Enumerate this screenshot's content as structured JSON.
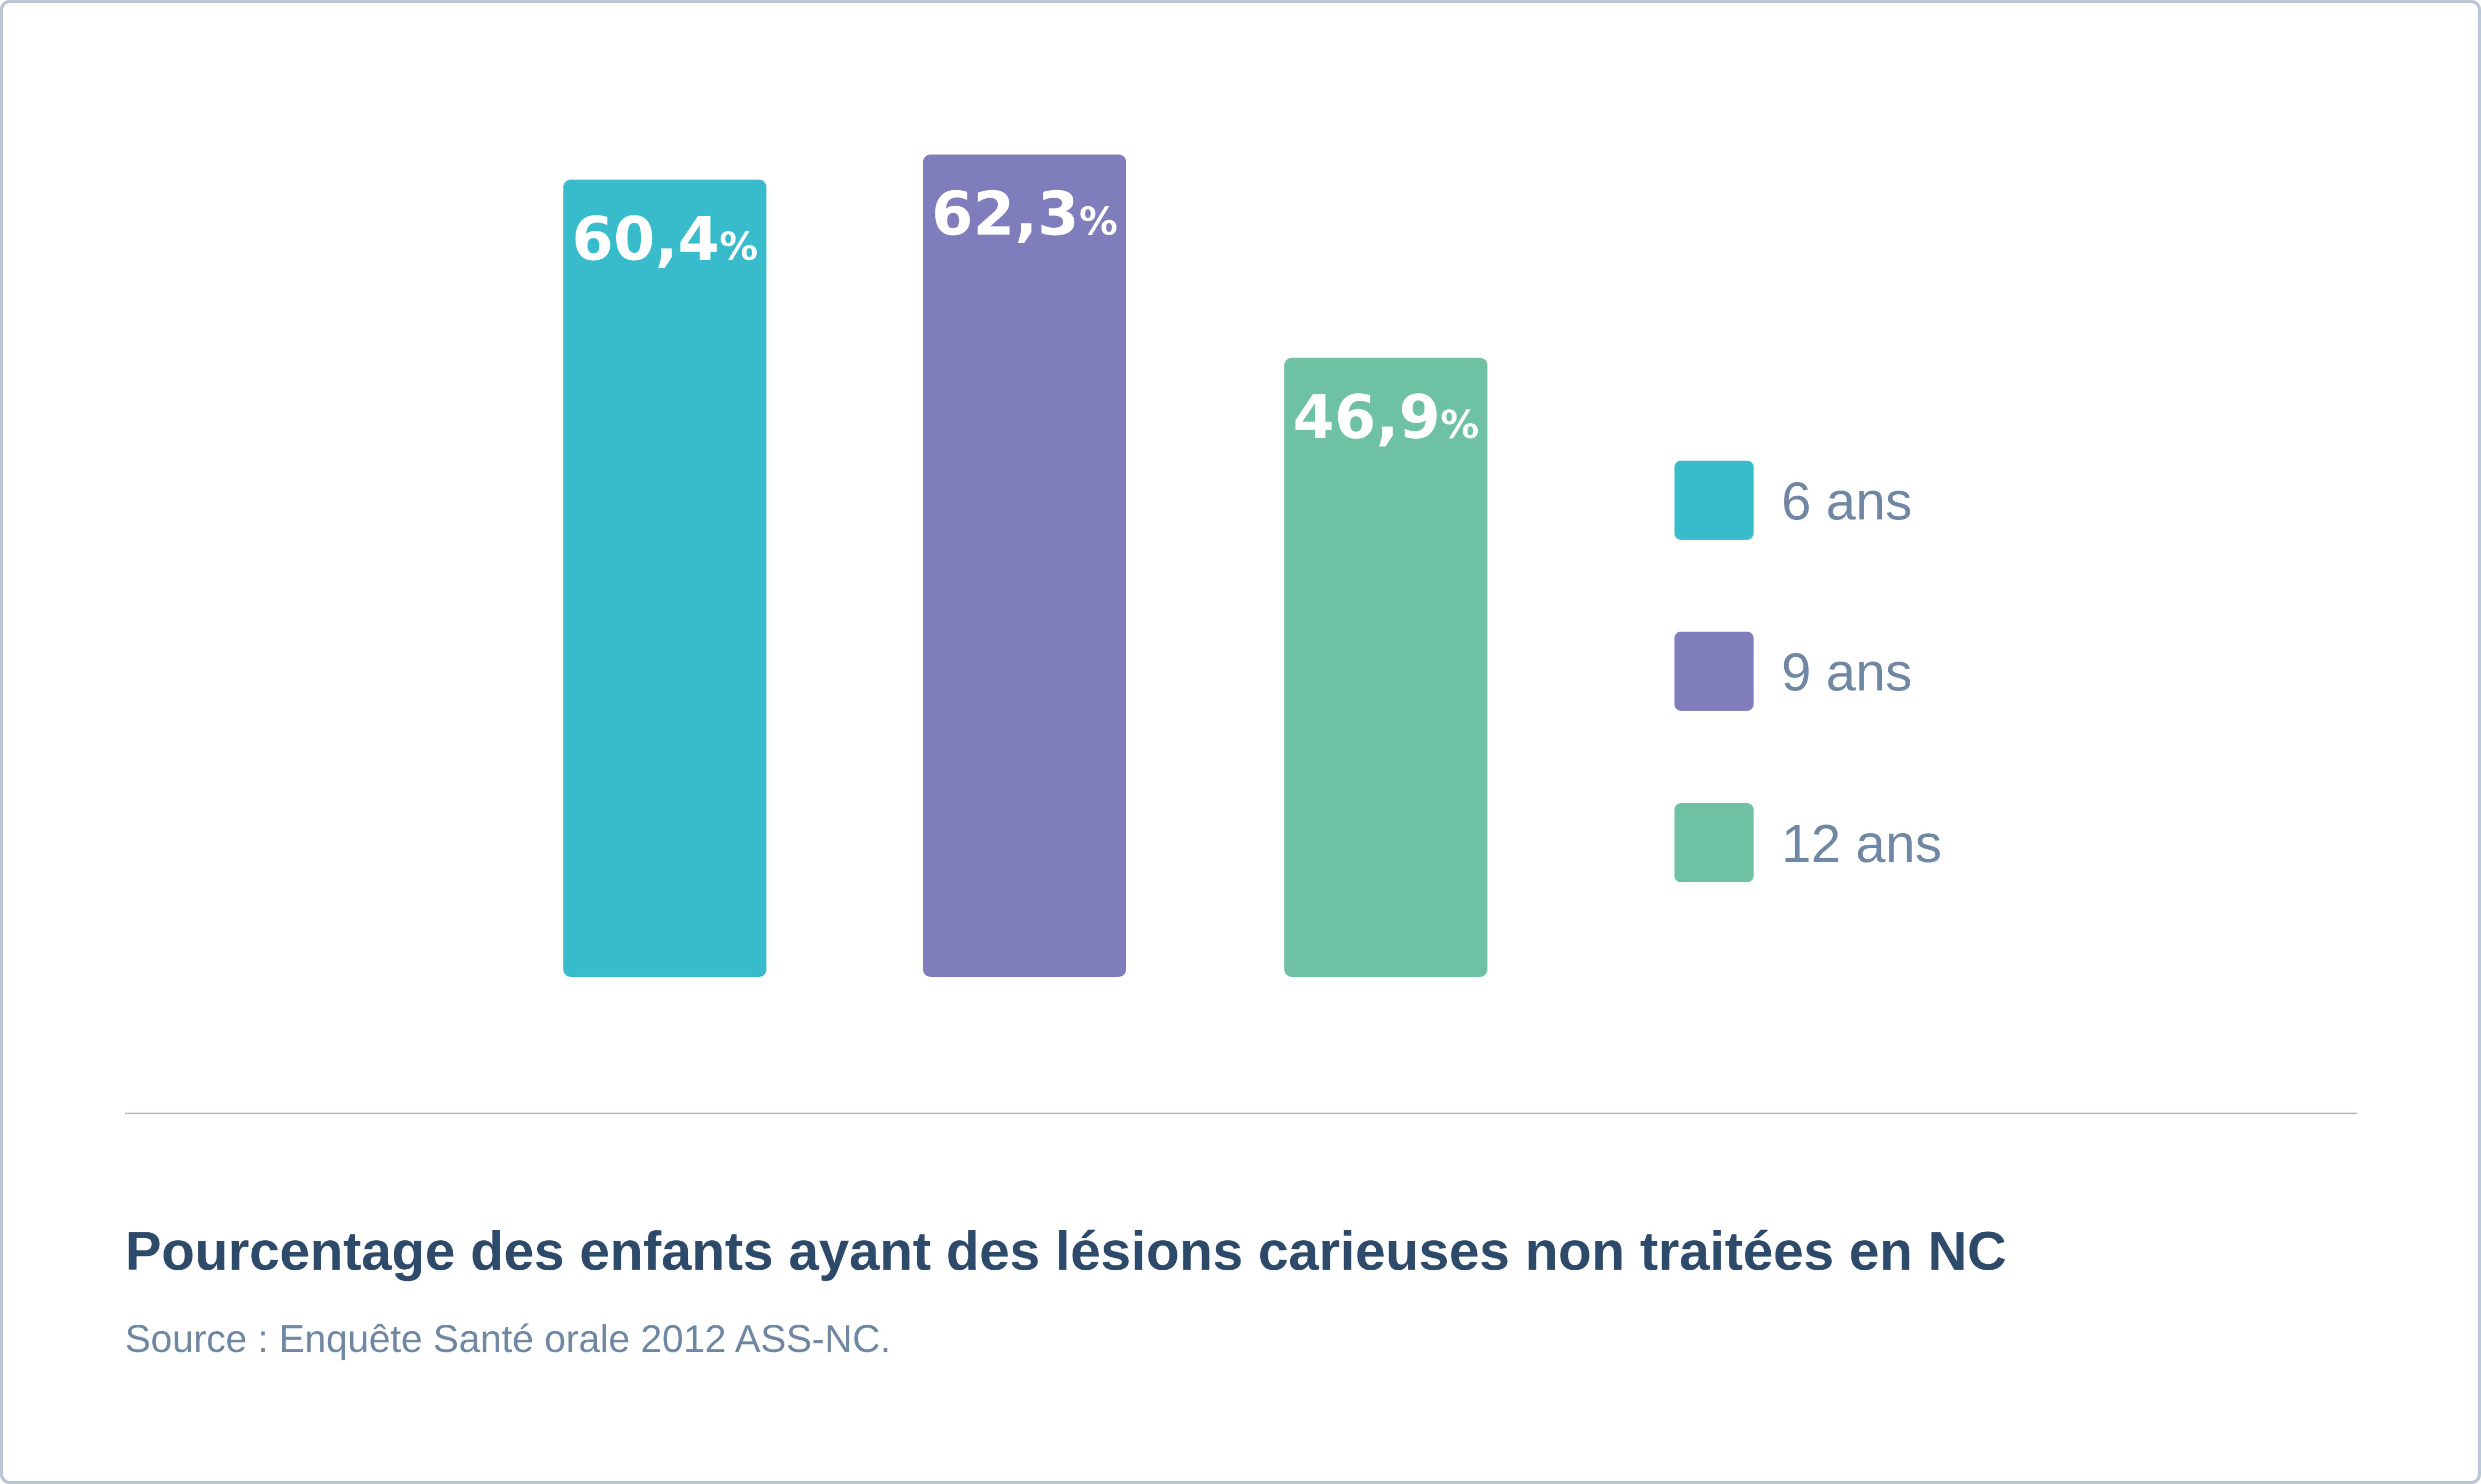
{
  "chart_data": {
    "type": "bar",
    "categories": [
      "6 ans",
      "9 ans",
      "12 ans"
    ],
    "values": [
      60.4,
      62.3,
      46.9
    ],
    "value_labels": [
      "60,4",
      "62,3",
      "46,9"
    ],
    "value_unit": "%",
    "colors": [
      "#38bbca",
      "#7f7dbb",
      "#6ec1a3"
    ],
    "title": "Pourcentage des enfants ayant des lésions carieuses non traitées en NC",
    "source": "Source : Enquête Santé orale 2012 ASS-NC.",
    "xlabel": "",
    "ylabel": "",
    "ylim": [
      0,
      100
    ],
    "grid": false,
    "legend": "right",
    "legend_entries": [
      "6 ans",
      "9 ans",
      "12 ans"
    ]
  }
}
